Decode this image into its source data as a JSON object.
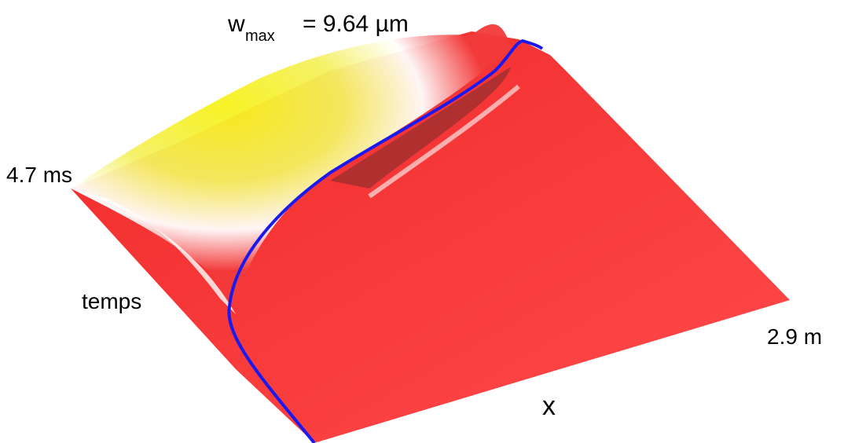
{
  "figure": {
    "title": {
      "base": "w",
      "subscript": "max",
      "rest": "= 9.64 µm"
    },
    "labels": {
      "time_end": "4.7 ms",
      "time_axis": "temps",
      "x_end": "2.9 m",
      "x_axis": "x"
    }
  }
}
